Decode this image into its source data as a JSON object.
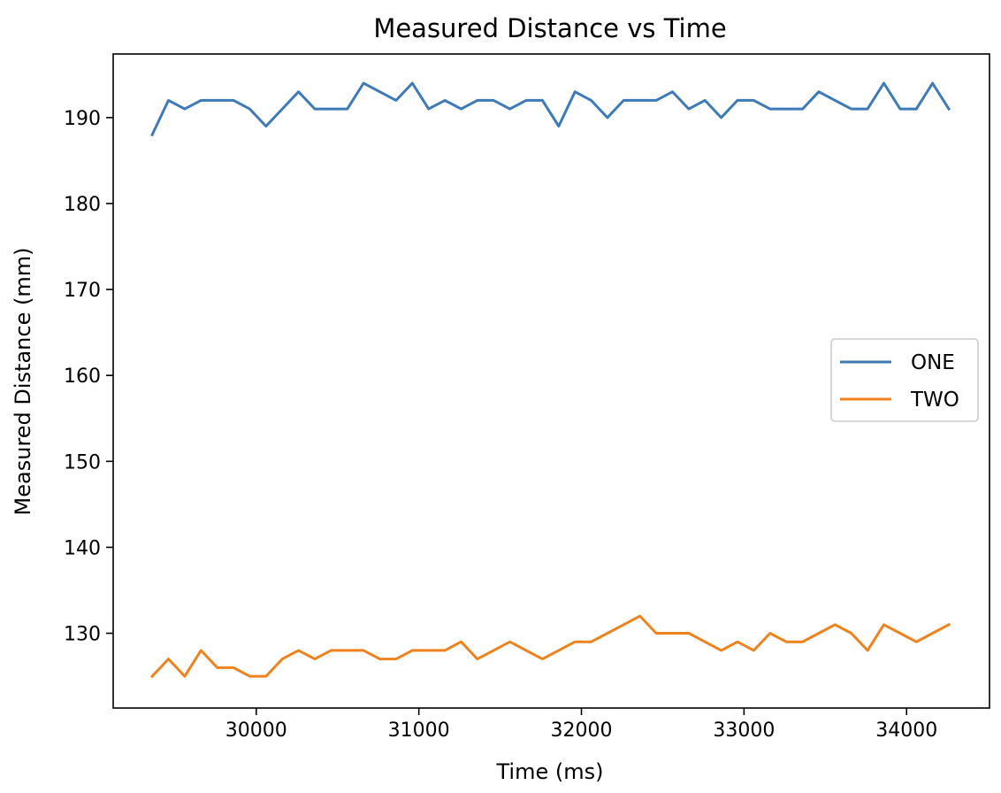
{
  "chart_data": {
    "type": "line",
    "title": "Measured Distance vs Time",
    "xlabel": "Time (ms)",
    "ylabel": "Measured Distance (mm)",
    "xlim": [
      29120,
      34510
    ],
    "ylim": [
      121.3,
      197.4
    ],
    "xticks": [
      30000,
      31000,
      32000,
      33000,
      34000
    ],
    "yticks": [
      130,
      140,
      150,
      160,
      170,
      180,
      190
    ],
    "grid": false,
    "legend_position": "center-right",
    "series": [
      {
        "name": "ONE",
        "color": "#3d7ab8",
        "x": [
          29360,
          29460,
          29560,
          29660,
          29760,
          29860,
          29960,
          30060,
          30160,
          30260,
          30360,
          30460,
          30560,
          30660,
          30760,
          30860,
          30960,
          31060,
          31160,
          31260,
          31360,
          31460,
          31560,
          31660,
          31760,
          31860,
          31960,
          32060,
          32160,
          32260,
          32360,
          32460,
          32560,
          32660,
          32760,
          32860,
          32960,
          33060,
          33160,
          33260,
          33360,
          33460,
          33560,
          33660,
          33760,
          33860,
          33960,
          34060,
          34160,
          34260
        ],
        "y": [
          188,
          192,
          191,
          192,
          192,
          192,
          191,
          189,
          191,
          193,
          191,
          191,
          191,
          194,
          193,
          192,
          194,
          191,
          192,
          191,
          192,
          192,
          191,
          192,
          192,
          189,
          193,
          192,
          190,
          192,
          192,
          192,
          193,
          191,
          192,
          190,
          192,
          192,
          191,
          191,
          191,
          193,
          192,
          191,
          191,
          194,
          191,
          191,
          194,
          191
        ]
      },
      {
        "name": "TWO",
        "color": "#f0821e",
        "x": [
          29360,
          29460,
          29560,
          29660,
          29760,
          29860,
          29960,
          30060,
          30160,
          30260,
          30360,
          30460,
          30560,
          30660,
          30760,
          30860,
          30960,
          31060,
          31160,
          31260,
          31360,
          31460,
          31560,
          31660,
          31760,
          31860,
          31960,
          32060,
          32160,
          32260,
          32360,
          32460,
          32560,
          32660,
          32760,
          32860,
          32960,
          33060,
          33160,
          33260,
          33360,
          33460,
          33560,
          33660,
          33760,
          33860,
          33960,
          34060,
          34160,
          34260
        ],
        "y": [
          125,
          127,
          125,
          128,
          126,
          126,
          125,
          125,
          127,
          128,
          127,
          128,
          128,
          128,
          127,
          127,
          128,
          128,
          128,
          129,
          127,
          128,
          129,
          128,
          127,
          128,
          129,
          129,
          130,
          131,
          132,
          130,
          130,
          130,
          129,
          128,
          129,
          128,
          130,
          129,
          129,
          130,
          131,
          130,
          128,
          131,
          130,
          129,
          130,
          131
        ]
      }
    ]
  }
}
